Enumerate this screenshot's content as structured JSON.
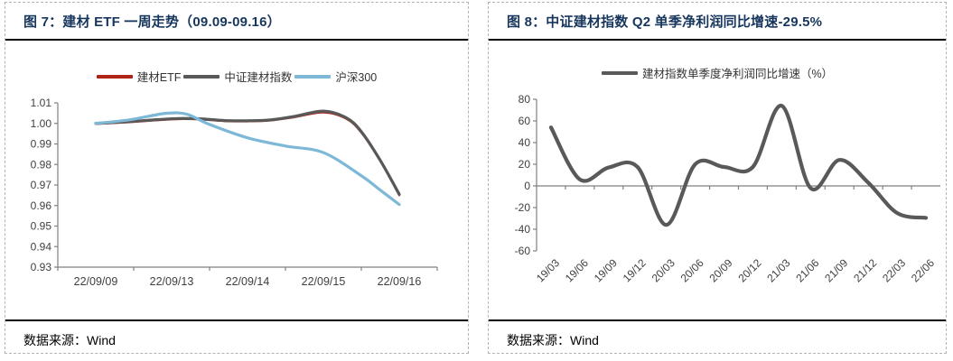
{
  "panels": [
    {
      "title": "图 7：建材 ETF 一周走势（09.09-09.16）",
      "source": "数据来源：Wind"
    },
    {
      "title": "图 8：中证建材指数 Q2 单季净利润同比增速-29.5%",
      "source": "数据来源：Wind"
    }
  ],
  "colors": {
    "title_navy": "#17365d",
    "axis_gray": "#808080",
    "rule_black": "#000000",
    "etf_red": "#b02418",
    "index_gray": "#595959",
    "hs300_blue": "#7db8d6"
  },
  "chart_data": [
    {
      "type": "line",
      "title": "建材 ETF 一周走势（09.09-09.16）",
      "x_tick_labels": [
        "22/09/09",
        "22/09/13",
        "22/09/14",
        "22/09/15",
        "22/09/16"
      ],
      "sections": 5,
      "ylim": [
        0.93,
        1.01
      ],
      "y_tick_step": 0.01,
      "y_decimals": 2,
      "grid": false,
      "smooth": true,
      "legend_position": "top",
      "series": [
        {
          "name": "建材ETF",
          "color": "#b02418",
          "width": 2.2,
          "x": [
            0,
            0.4,
            0.8,
            1.1,
            1.4,
            1.7,
            2.0,
            2.3,
            2.6,
            3.0,
            3.3,
            3.5,
            3.75,
            4.0
          ],
          "values": [
            0.9997,
            1.0005,
            1.0015,
            1.0021,
            1.0019,
            1.0011,
            1.001,
            1.0014,
            1.0029,
            1.0053,
            1.0023,
            0.9955,
            0.9816,
            0.965
          ]
        },
        {
          "name": "中证建材指数",
          "color": "#595959",
          "width": 3.2,
          "x": [
            0,
            0.4,
            0.8,
            1.1,
            1.4,
            1.7,
            2.0,
            2.3,
            2.6,
            3.0,
            3.3,
            3.5,
            3.75,
            4.0
          ],
          "values": [
            1.0,
            1.0008,
            1.0018,
            1.0024,
            1.0022,
            1.0014,
            1.0013,
            1.0017,
            1.0033,
            1.006,
            1.0028,
            0.996,
            0.982,
            0.9655
          ]
        },
        {
          "name": "沪深300",
          "color": "#7db8d6",
          "width": 3.2,
          "x": [
            0,
            0.4,
            0.7,
            0.95,
            1.2,
            1.5,
            2.0,
            2.5,
            3.0,
            3.5,
            3.75,
            4.0
          ],
          "values": [
            1.0,
            1.0015,
            1.0035,
            1.005,
            1.0045,
            0.9995,
            0.993,
            0.989,
            0.9858,
            0.9745,
            0.9675,
            0.9605
          ]
        }
      ]
    },
    {
      "type": "line",
      "title": "中证建材指数单季度净利润同比增速",
      "categories": [
        "19/03",
        "19/06",
        "19/09",
        "19/12",
        "20/03",
        "20/06",
        "20/09",
        "20/12",
        "21/03",
        "21/06",
        "21/09",
        "21/12",
        "22/03",
        "22/06"
      ],
      "ylim": [
        -60,
        80
      ],
      "y_tick_step": 20,
      "y_decimals": 0,
      "grid": false,
      "smooth": true,
      "zero_axis": true,
      "legend_position": "top",
      "series": [
        {
          "name": "建材指数单季度净利润同比增速（%）",
          "color": "#595959",
          "width": 4.2,
          "values": [
            54,
            6,
            17,
            17.5,
            -36,
            20,
            17.5,
            17.5,
            74,
            -2,
            24,
            3,
            -25,
            -29.5
          ]
        }
      ]
    }
  ]
}
